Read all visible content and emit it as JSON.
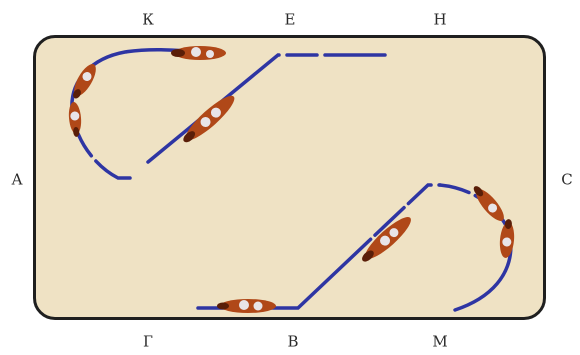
{
  "labels": {
    "K": "К",
    "E": "Е",
    "H": "Н",
    "A": "А",
    "C": "С",
    "G": "Г",
    "B": "В",
    "M": "М"
  },
  "colors": {
    "arena_fill": "#efe2c4",
    "arena_border": "#1f1f1f",
    "track": "#2e35a3",
    "horse": "#b04818",
    "horse_dark": "#5a1e08",
    "rider": "#e8e4e8"
  }
}
